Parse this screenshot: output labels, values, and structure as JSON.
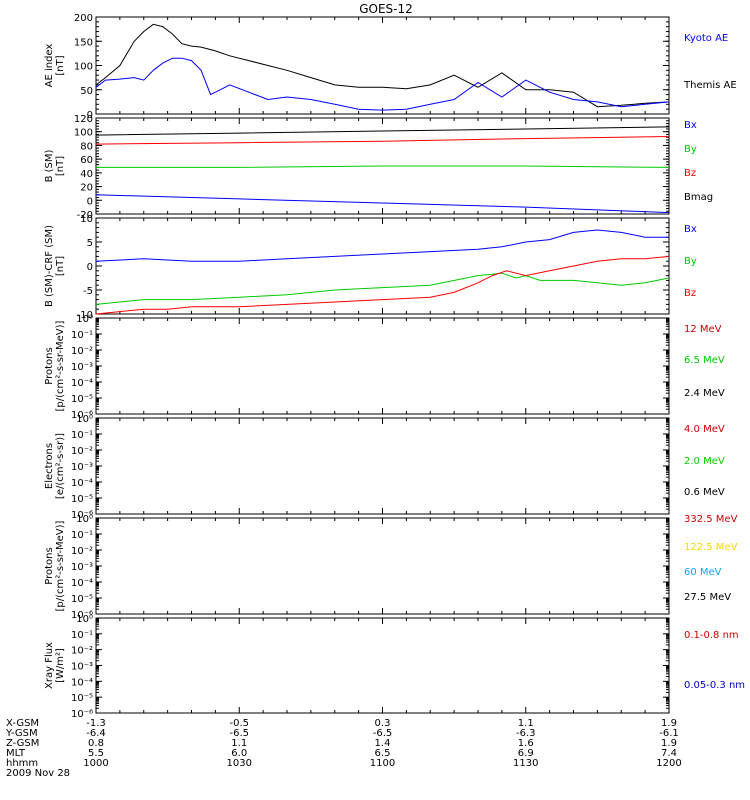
{
  "title": "GOES-12",
  "footer": {
    "rows": [
      {
        "label": "X-GSM",
        "values": [
          "-1.3",
          "-0.5",
          "0.3",
          "1.1",
          "1.9"
        ]
      },
      {
        "label": "Y-GSM",
        "values": [
          "-6.4",
          "-6.5",
          "-6.5",
          "-6.3",
          "-6.1"
        ]
      },
      {
        "label": "Z-GSM",
        "values": [
          "0.8",
          "1.1",
          "1.4",
          "1.6",
          "1.9"
        ]
      },
      {
        "label": "MLT",
        "values": [
          "5.5",
          "6.0",
          "6.5",
          "6.9",
          "7.4"
        ]
      },
      {
        "label": "hhmm",
        "values": [
          "1000",
          "1030",
          "1100",
          "1130",
          "1200"
        ]
      }
    ],
    "date": "2009 Nov 28"
  },
  "chart_data": [
    {
      "type": "line",
      "ylabel": [
        "AE index",
        "[nT]"
      ],
      "ylim": [
        0,
        200
      ],
      "yticks": [
        {
          "v": 0,
          "t": "0"
        },
        {
          "v": 50,
          "t": "50"
        },
        {
          "v": 100,
          "t": "100"
        },
        {
          "v": 150,
          "t": "150"
        },
        {
          "v": 200,
          "t": "200"
        }
      ],
      "log": false,
      "legend": [
        {
          "name": "Kyoto AE",
          "color": "#0000ff"
        },
        {
          "name": "Themis AE",
          "color": "#000000"
        }
      ],
      "series": [
        {
          "name": "Themis AE",
          "color": "#000000",
          "x": [
            0,
            2,
            5,
            8,
            10,
            12,
            14,
            16,
            18,
            20,
            22,
            25,
            28,
            32,
            36,
            40,
            45,
            50,
            55,
            60,
            65,
            70,
            75,
            80,
            85,
            90,
            95,
            100,
            105,
            110,
            115,
            120
          ],
          "y": [
            60,
            75,
            100,
            150,
            170,
            185,
            180,
            165,
            145,
            140,
            138,
            130,
            120,
            110,
            100,
            90,
            75,
            60,
            55,
            55,
            52,
            60,
            80,
            55,
            85,
            50,
            50,
            45,
            15,
            18,
            22,
            25
          ]
        },
        {
          "name": "Kyoto AE",
          "color": "#0000ff",
          "x": [
            0,
            2,
            5,
            8,
            10,
            12,
            14,
            16,
            18,
            20,
            22,
            24,
            26,
            28,
            32,
            36,
            40,
            45,
            50,
            55,
            60,
            65,
            70,
            75,
            80,
            85,
            90,
            95,
            100,
            105,
            110,
            115,
            120
          ],
          "y": [
            55,
            70,
            72,
            75,
            70,
            90,
            105,
            115,
            115,
            110,
            90,
            40,
            50,
            60,
            45,
            30,
            35,
            30,
            20,
            10,
            8,
            10,
            20,
            30,
            65,
            35,
            70,
            45,
            30,
            25,
            15,
            20,
            25
          ]
        }
      ]
    },
    {
      "type": "line",
      "ylabel": [
        "B (SM)",
        "[nT]"
      ],
      "ylim": [
        -20,
        120
      ],
      "yticks": [
        {
          "v": -20,
          "t": "-20"
        },
        {
          "v": 0,
          "t": "0"
        },
        {
          "v": 20,
          "t": "20"
        },
        {
          "v": 40,
          "t": "40"
        },
        {
          "v": 60,
          "t": "60"
        },
        {
          "v": 80,
          "t": "80"
        },
        {
          "v": 100,
          "t": "100"
        },
        {
          "v": 120,
          "t": "120"
        }
      ],
      "log": false,
      "legend": [
        {
          "name": "Bx",
          "color": "#0000ff"
        },
        {
          "name": "By",
          "color": "#00cc00"
        },
        {
          "name": "Bz",
          "color": "#ff0000"
        },
        {
          "name": "Bmag",
          "color": "#000000"
        }
      ],
      "series": [
        {
          "name": "Bmag",
          "color": "#000000",
          "x": [
            0,
            30,
            60,
            90,
            120
          ],
          "y": [
            95,
            98,
            101,
            104,
            107
          ]
        },
        {
          "name": "Bz",
          "color": "#ff0000",
          "x": [
            0,
            30,
            60,
            90,
            120
          ],
          "y": [
            82,
            84,
            86,
            90,
            93
          ]
        },
        {
          "name": "By",
          "color": "#00cc00",
          "x": [
            0,
            30,
            60,
            90,
            120
          ],
          "y": [
            48,
            48,
            50,
            50,
            48
          ]
        },
        {
          "name": "Bx",
          "color": "#0000ff",
          "x": [
            0,
            30,
            60,
            90,
            120
          ],
          "y": [
            8,
            2,
            -4,
            -10,
            -18
          ]
        }
      ]
    },
    {
      "type": "line",
      "ylabel": [
        "B (SM)-CRF (SM)",
        "[nT]"
      ],
      "ylim": [
        -10,
        10
      ],
      "yticks": [
        {
          "v": -10,
          "t": "-10"
        },
        {
          "v": -5,
          "t": "-5"
        },
        {
          "v": 0,
          "t": "0"
        },
        {
          "v": 5,
          "t": "5"
        },
        {
          "v": 10,
          "t": "10"
        }
      ],
      "log": false,
      "legend": [
        {
          "name": "Bx",
          "color": "#0000ff"
        },
        {
          "name": "By",
          "color": "#00cc00"
        },
        {
          "name": "Bz",
          "color": "#ff0000"
        }
      ],
      "series": [
        {
          "name": "Bx",
          "color": "#0000ff",
          "x": [
            0,
            10,
            20,
            30,
            40,
            50,
            60,
            70,
            80,
            85,
            90,
            95,
            100,
            105,
            110,
            115,
            120
          ],
          "y": [
            1,
            1.5,
            1,
            1,
            1.5,
            2,
            2.5,
            3,
            3.5,
            4,
            5,
            5.5,
            7,
            7.5,
            7,
            6,
            6
          ]
        },
        {
          "name": "By",
          "color": "#00cc00",
          "x": [
            0,
            5,
            10,
            15,
            20,
            30,
            40,
            50,
            60,
            70,
            80,
            85,
            88,
            90,
            93,
            96,
            100,
            105,
            110,
            115,
            120
          ],
          "y": [
            -8,
            -7.5,
            -7,
            -7,
            -7,
            -6.5,
            -6,
            -5,
            -4.5,
            -4,
            -2,
            -1.5,
            -2.5,
            -2,
            -3,
            -3,
            -3,
            -3.5,
            -4,
            -3.5,
            -2.5
          ]
        },
        {
          "name": "Bz",
          "color": "#ff0000",
          "x": [
            0,
            5,
            10,
            15,
            20,
            30,
            40,
            50,
            60,
            70,
            75,
            80,
            83,
            86,
            90,
            95,
            100,
            105,
            110,
            115,
            120
          ],
          "y": [
            -10,
            -9.5,
            -9,
            -9,
            -8.5,
            -8.5,
            -8,
            -7.5,
            -7,
            -6.5,
            -5.5,
            -3.5,
            -2,
            -1,
            -2,
            -1,
            0,
            1,
            1.5,
            1.5,
            2
          ]
        }
      ]
    },
    {
      "type": "line",
      "ylabel": [
        "Protons",
        "[p/(cm²-s-sr-MeV)]"
      ],
      "ylim": [
        -6,
        0
      ],
      "yticks": [
        {
          "v": 0,
          "t": "10⁰"
        },
        {
          "v": -1,
          "t": "10⁻¹"
        },
        {
          "v": -2,
          "t": "10⁻²"
        },
        {
          "v": -3,
          "t": "10⁻³"
        },
        {
          "v": -4,
          "t": "10⁻⁴"
        },
        {
          "v": -5,
          "t": "10⁻⁵"
        },
        {
          "v": -6,
          "t": "10⁻⁶"
        }
      ],
      "log": true,
      "legend": [
        {
          "name": "12 MeV",
          "color": "#cc0000"
        },
        {
          "name": "6.5 MeV",
          "color": "#00cc00"
        },
        {
          "name": "2.4 MeV",
          "color": "#000000"
        }
      ],
      "series": []
    },
    {
      "type": "line",
      "ylabel": [
        "Electrons",
        "[e/(cm²-s-sr)]"
      ],
      "ylim": [
        -6,
        0
      ],
      "yticks": [
        {
          "v": 0,
          "t": "10⁰"
        },
        {
          "v": -1,
          "t": "10⁻¹"
        },
        {
          "v": -2,
          "t": "10⁻²"
        },
        {
          "v": -3,
          "t": "10⁻³"
        },
        {
          "v": -4,
          "t": "10⁻⁴"
        },
        {
          "v": -5,
          "t": "10⁻⁵"
        },
        {
          "v": -6,
          "t": "10⁻⁶"
        }
      ],
      "log": true,
      "legend": [
        {
          "name": "4.0 MeV",
          "color": "#cc0000"
        },
        {
          "name": "2.0 MeV",
          "color": "#00cc00"
        },
        {
          "name": "0.6 MeV",
          "color": "#000000"
        }
      ],
      "series": []
    },
    {
      "type": "line",
      "ylabel": [
        "Protons",
        "[p/(cm²-s-sr-MeV)]"
      ],
      "ylim": [
        -6,
        0
      ],
      "yticks": [
        {
          "v": 0,
          "t": "10⁰"
        },
        {
          "v": -1,
          "t": "10⁻¹"
        },
        {
          "v": -2,
          "t": "10⁻²"
        },
        {
          "v": -3,
          "t": "10⁻³"
        },
        {
          "v": -4,
          "t": "10⁻⁴"
        },
        {
          "v": -5,
          "t": "10⁻⁵"
        },
        {
          "v": -6,
          "t": "10⁻⁶"
        }
      ],
      "log": true,
      "legend": [
        {
          "name": "332.5 MeV",
          "color": "#cc0000"
        },
        {
          "name": "122.5 MeV",
          "color": "#ffd700"
        },
        {
          "name": "60 MeV",
          "color": "#00aaee"
        },
        {
          "name": "27.5 MeV",
          "color": "#000000"
        }
      ],
      "series": []
    },
    {
      "type": "line",
      "ylabel": [
        "Xray Flux",
        "[W/m²]"
      ],
      "ylim": [
        -6,
        0
      ],
      "yticks": [
        {
          "v": 0,
          "t": "10⁰"
        },
        {
          "v": -1,
          "t": "10⁻¹"
        },
        {
          "v": -2,
          "t": "10⁻²"
        },
        {
          "v": -3,
          "t": "10⁻³"
        },
        {
          "v": -4,
          "t": "10⁻⁴"
        },
        {
          "v": -5,
          "t": "10⁻⁵"
        },
        {
          "v": -6,
          "t": "10⁻⁶"
        }
      ],
      "log": true,
      "legend": [
        {
          "name": "0.1-0.8 nm",
          "color": "#cc0000"
        },
        {
          "name": "0.05-0.3 nm",
          "color": "#0000cc"
        }
      ],
      "series": []
    }
  ]
}
